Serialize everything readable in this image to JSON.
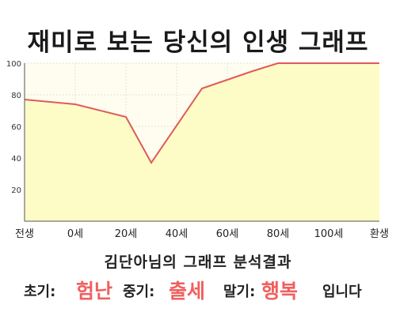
{
  "title": "재미로 보는 당신의 인생 그래프",
  "subtitle": "김단아님의 그래프 분석결과",
  "result": {
    "early_label": "초기:",
    "early_value": "험난",
    "middle_label": "중기:",
    "middle_value": "출세",
    "late_label": "말기:",
    "late_value": "행복",
    "ending": "입니다"
  },
  "colors": {
    "fill": "#fefcc6",
    "line": "#e05a5a",
    "highlight": "#f06060",
    "plot_bg": "#fefdf0"
  },
  "chart_data": {
    "type": "area",
    "x_ticks": [
      "전생",
      "0세",
      "20세",
      "40세",
      "60세",
      "80세",
      "100세",
      "환생"
    ],
    "x_values": [
      -20,
      0,
      20,
      40,
      60,
      80,
      100,
      120
    ],
    "xlim": [
      -20,
      120
    ],
    "ylim": [
      0,
      100
    ],
    "y_ticks": [
      20,
      40,
      60,
      80,
      100
    ],
    "grid": true,
    "series": [
      {
        "x": [
          -20,
          0,
          20,
          30,
          50,
          70,
          80,
          100,
          120
        ],
        "y": [
          77,
          74,
          66,
          37,
          84,
          95,
          100,
          100,
          100
        ]
      }
    ]
  }
}
